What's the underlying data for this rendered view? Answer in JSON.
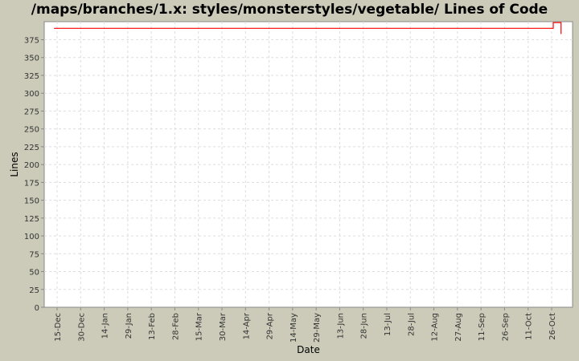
{
  "chart_data": {
    "type": "line",
    "title": "/maps/branches/1.x: styles/monsterstyles/vegetable/ Lines of Code",
    "xlabel": "Date",
    "ylabel": "Lines",
    "ylim": [
      0,
      400
    ],
    "yticks": [
      0,
      25,
      50,
      75,
      100,
      125,
      150,
      175,
      200,
      225,
      250,
      275,
      300,
      325,
      350,
      375
    ],
    "xticks": [
      "15-Dec",
      "30-Dec",
      "14-Jan",
      "29-Jan",
      "13-Feb",
      "28-Feb",
      "15-Mar",
      "30-Mar",
      "14-Apr",
      "29-Apr",
      "14-May",
      "29-May",
      "13-Jun",
      "28-Jun",
      "13-Jul",
      "28-Jul",
      "12-Aug",
      "27-Aug",
      "11-Sep",
      "26-Sep",
      "11-Oct",
      "26-Oct"
    ],
    "grid": true,
    "series": [
      {
        "color": "#ff0000",
        "points": [
          {
            "date": "13-Dec",
            "lines": 391
          },
          {
            "date": "27-Oct",
            "lines": 391
          },
          {
            "date": "27-Oct",
            "lines": 399
          },
          {
            "date": "01-Nov",
            "lines": 399
          },
          {
            "date": "01-Nov",
            "lines": 383
          }
        ]
      }
    ]
  }
}
